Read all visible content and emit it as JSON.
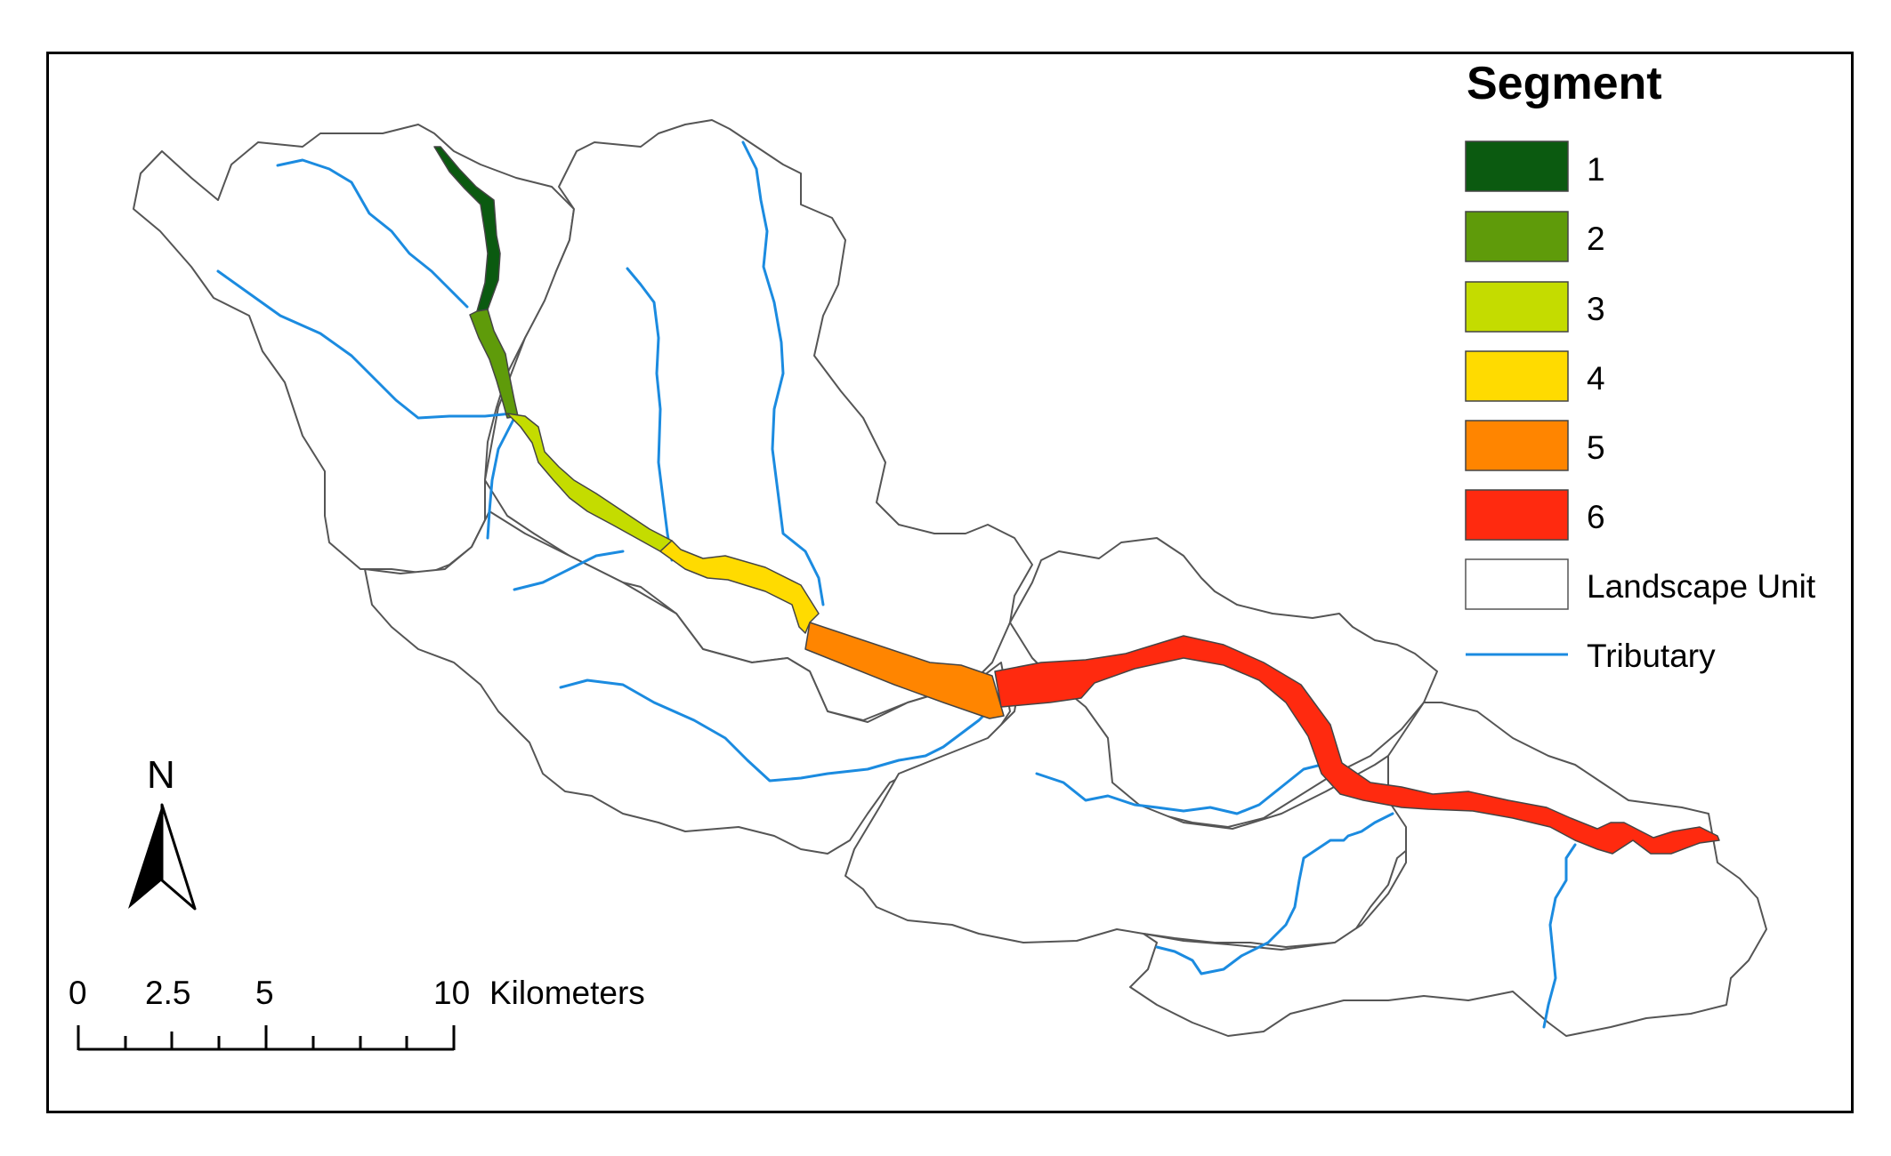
{
  "legend": {
    "title": "Segment",
    "items": [
      {
        "label": "1",
        "color": "#0b5a10"
      },
      {
        "label": "2",
        "color": "#5f9b0a"
      },
      {
        "label": "3",
        "color": "#c4dc00"
      },
      {
        "label": "4",
        "color": "#ffdb00"
      },
      {
        "label": "5",
        "color": "#ff8500"
      },
      {
        "label": "6",
        "color": "#ff2a0f"
      },
      {
        "label": "Landscape Unit",
        "color": "#ffffff"
      },
      {
        "label": "Tributary",
        "color": "#1b8be0"
      }
    ]
  },
  "scalebar": {
    "ticks": [
      "0",
      "2.5",
      "5",
      "10"
    ],
    "unit": "Kilometers"
  },
  "north_arrow": {
    "label": "N"
  },
  "colors": {
    "frame": "#000000",
    "boundary": "#555555",
    "tributary": "#1b8be0"
  }
}
